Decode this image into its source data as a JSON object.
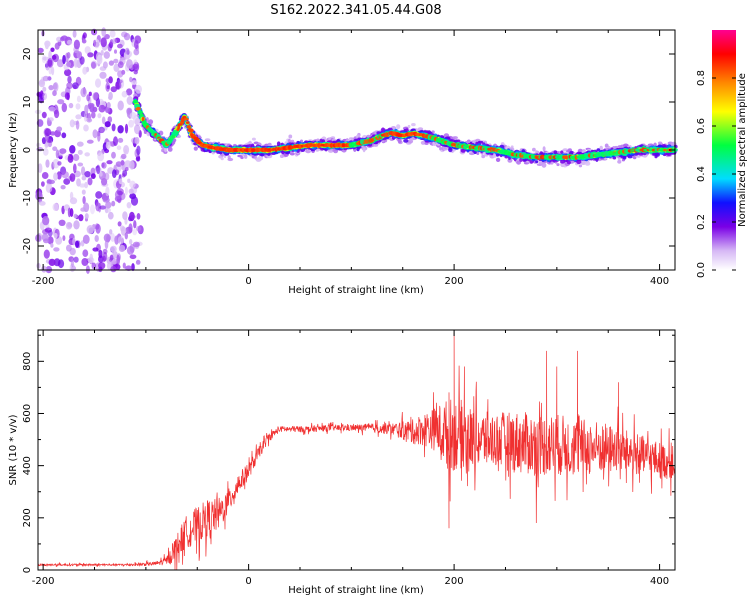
{
  "title": "S162.2022.341.05.44.G08",
  "chart_data": [
    {
      "type": "heatmap",
      "xlabel": "Height of straight line (km)",
      "ylabel": "Frequency (Hz)",
      "xlim": [
        -205,
        415
      ],
      "ylim": [
        -25,
        25
      ],
      "x_ticks": [
        -200,
        0,
        200,
        400
      ],
      "y_ticks": [
        -20,
        -10,
        0,
        10,
        20
      ],
      "colorbar": {
        "label": "Normalized spectral amplitude",
        "range": [
          0.0,
          1.0
        ],
        "ticks": [
          0.0,
          0.2,
          0.4,
          0.6,
          0.8
        ],
        "colormap": "white-purple-blue-cyan-green-yellow-orange-red-magenta"
      },
      "noise_region_x": [
        -205,
        -105
      ],
      "ridge": {
        "x": [
          -110,
          -100,
          -90,
          -80,
          -70,
          -62,
          -55,
          -45,
          -35,
          -20,
          0,
          20,
          40,
          60,
          80,
          100,
          110,
          120,
          130,
          140,
          150,
          160,
          170,
          180,
          200,
          220,
          240,
          260,
          280,
          300,
          320,
          340,
          360,
          380,
          400,
          415
        ],
        "frequency": [
          10,
          5,
          3,
          1,
          4,
          7,
          3,
          1,
          0.5,
          0,
          0,
          0,
          0.5,
          1,
          1,
          1,
          1.5,
          2,
          3,
          3.5,
          3,
          3.5,
          3,
          2.5,
          1,
          0.5,
          0,
          -1,
          -1.5,
          -1.5,
          -1.5,
          -1,
          -0.5,
          0,
          0,
          0
        ]
      }
    },
    {
      "type": "line",
      "xlabel": "Height of straight line (km)",
      "ylabel": "SNR (10 * v/v)",
      "xlim": [
        -205,
        415
      ],
      "ylim": [
        0,
        920
      ],
      "x_ticks": [
        -200,
        0,
        200,
        400
      ],
      "y_ticks": [
        0,
        200,
        400,
        600,
        800
      ],
      "color": "#f03030",
      "series": [
        {
          "x": [
            -205,
            -180,
            -160,
            -140,
            -120,
            -100,
            -90,
            -80,
            -70,
            -60,
            -50,
            -40,
            -30,
            -20,
            -10,
            0,
            10,
            20,
            30,
            40,
            60,
            80,
            100,
            120,
            140,
            160,
            170,
            180,
            190,
            200,
            210,
            220,
            240,
            260,
            280,
            300,
            320,
            340,
            360,
            380,
            400,
            415
          ],
          "values": [
            20,
            20,
            20,
            20,
            20,
            22,
            25,
            35,
            90,
            150,
            170,
            200,
            210,
            260,
            330,
            380,
            450,
            510,
            540,
            540,
            540,
            545,
            545,
            545,
            540,
            530,
            540,
            540,
            530,
            520,
            520,
            500,
            500,
            490,
            480,
            480,
            470,
            470,
            460,
            440,
            420,
            410
          ],
          "noise_amplitude": [
            5,
            5,
            5,
            5,
            5,
            8,
            10,
            20,
            60,
            80,
            90,
            90,
            80,
            60,
            50,
            40,
            30,
            20,
            15,
            15,
            15,
            15,
            15,
            20,
            30,
            60,
            80,
            100,
            150,
            180,
            160,
            140,
            130,
            150,
            150,
            150,
            140,
            130,
            110,
            100,
            90,
            80
          ],
          "peaks": [
            [
              200,
              910
            ],
            [
              210,
              780
            ],
            [
              195,
              160
            ],
            [
              280,
              180
            ],
            [
              290,
              840
            ],
            [
              300,
              780
            ],
            [
              320,
              840
            ],
            [
              360,
              720
            ]
          ]
        }
      ]
    }
  ]
}
